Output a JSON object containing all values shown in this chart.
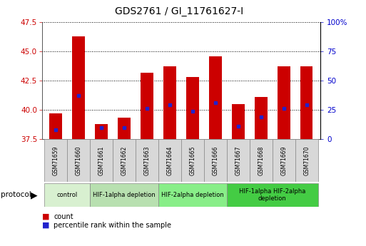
{
  "title": "GDS2761 / GI_11761627-I",
  "samples": [
    "GSM71659",
    "GSM71660",
    "GSM71661",
    "GSM71662",
    "GSM71663",
    "GSM71664",
    "GSM71665",
    "GSM71666",
    "GSM71667",
    "GSM71668",
    "GSM71669",
    "GSM71670"
  ],
  "counts": [
    39.7,
    46.3,
    38.8,
    39.3,
    43.2,
    43.7,
    42.8,
    44.6,
    40.5,
    41.1,
    43.7,
    43.7
  ],
  "percentile_ranks": [
    38.3,
    41.2,
    38.5,
    38.5,
    40.1,
    40.4,
    39.9,
    40.6,
    38.6,
    39.4,
    40.1,
    40.4
  ],
  "y_min": 37.5,
  "y_max": 47.5,
  "y_ticks": [
    37.5,
    40.0,
    42.5,
    45.0,
    47.5
  ],
  "bar_color": "#cc0000",
  "percentile_color": "#2222cc",
  "bar_width": 0.55,
  "proto_groups": [
    {
      "label": "control",
      "start": 0,
      "end": 1,
      "color": "#d8f0d0"
    },
    {
      "label": "HIF-1alpha depletion",
      "start": 2,
      "end": 4,
      "color": "#b8e0b0"
    },
    {
      "label": "HIF-2alpha depletion",
      "start": 5,
      "end": 7,
      "color": "#88ee88"
    },
    {
      "label": "HIF-1alpha HIF-2alpha\ndepletion",
      "start": 8,
      "end": 11,
      "color": "#44cc44"
    }
  ],
  "tick_color": "#cc0000",
  "right_tick_color": "#0000cc",
  "right_tick_labels": [
    "0",
    "25",
    "50",
    "75",
    "100%"
  ],
  "right_tick_values": [
    37.5,
    40.0,
    42.5,
    45.0,
    47.5
  ],
  "grid_color": "#000000",
  "sample_box_color": "#d8d8d8",
  "title_fontsize": 10
}
